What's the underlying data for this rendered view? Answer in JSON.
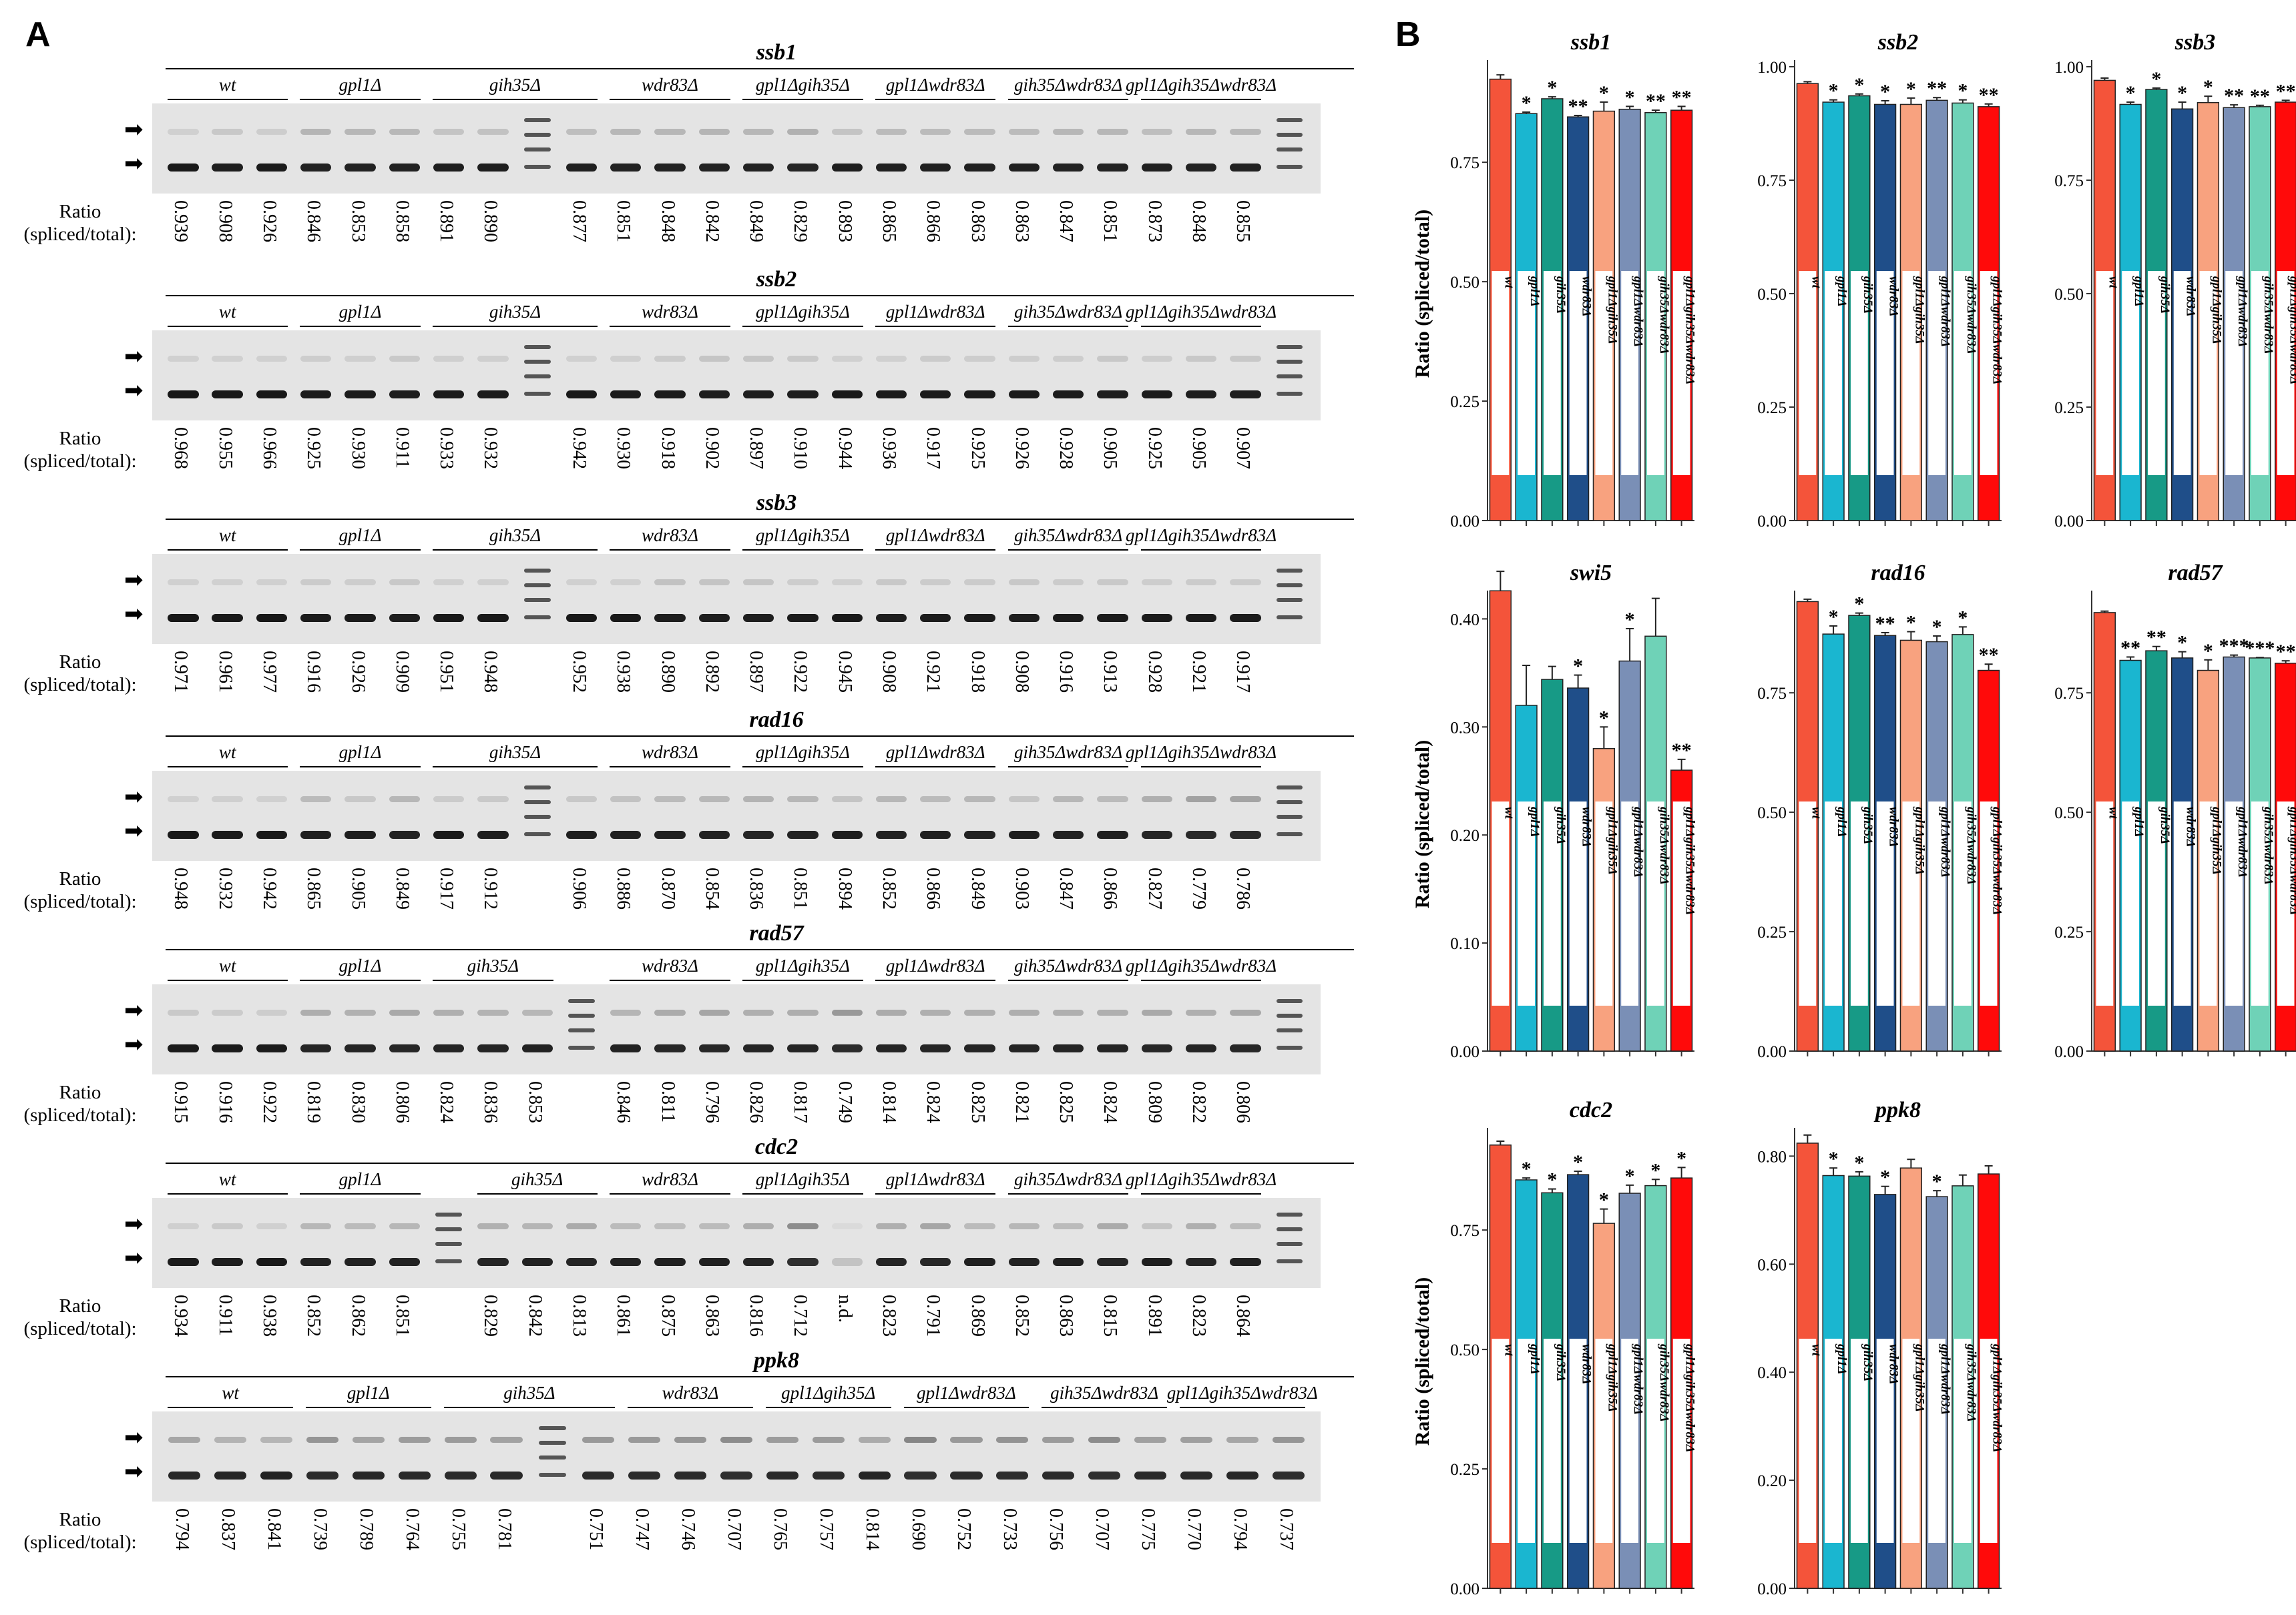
{
  "panels": {
    "a": "A",
    "b": "B"
  },
  "ratio_label_1": "Ratio",
  "ratio_label_2": "(spliced/total):",
  "strains": [
    "wt",
    "gpl1Δ",
    "gih35Δ",
    "wdr83Δ",
    "gpl1Δgih35Δ",
    "gpl1Δwdr83Δ",
    "gih35Δwdr83Δ",
    "gpl1Δgih35Δwdr83Δ"
  ],
  "gels": [
    {
      "gene": "ssb1",
      "ladder_after": 8,
      "ladder_end": true,
      "ratios": [
        "0.939",
        "0.908",
        "0.926",
        "0.846",
        "0.853",
        "0.858",
        "0.891",
        "0.890",
        "0.877",
        "0.851",
        "0.848",
        "0.842",
        "0.849",
        "0.829",
        "0.893",
        "0.865",
        "0.866",
        "0.863",
        "0.863",
        "0.847",
        "0.851",
        "0.873",
        "0.848",
        "0.855"
      ]
    },
    {
      "gene": "ssb2",
      "ladder_after": 8,
      "ladder_end": true,
      "ratios": [
        "0.968",
        "0.955",
        "0.966",
        "0.925",
        "0.930",
        "0.911",
        "0.933",
        "0.932",
        "0.942",
        "0.930",
        "0.918",
        "0.902",
        "0.897",
        "0.910",
        "0.944",
        "0.936",
        "0.917",
        "0.925",
        "0.926",
        "0.928",
        "0.905",
        "0.925",
        "0.905",
        "0.907"
      ]
    },
    {
      "gene": "ssb3",
      "ladder_after": 8,
      "ladder_end": true,
      "ratios": [
        "0.971",
        "0.961",
        "0.977",
        "0.916",
        "0.926",
        "0.909",
        "0.951",
        "0.948",
        "0.952",
        "0.938",
        "0.890",
        "0.892",
        "0.897",
        "0.922",
        "0.945",
        "0.908",
        "0.921",
        "0.918",
        "0.908",
        "0.916",
        "0.913",
        "0.928",
        "0.921",
        "0.917"
      ]
    },
    {
      "gene": "rad16",
      "ladder_after": 8,
      "ladder_end": true,
      "ratios": [
        "0.948",
        "0.932",
        "0.942",
        "0.865",
        "0.905",
        "0.849",
        "0.917",
        "0.912",
        "0.906",
        "0.886",
        "0.870",
        "0.854",
        "0.836",
        "0.851",
        "0.894",
        "0.852",
        "0.866",
        "0.849",
        "0.903",
        "0.847",
        "0.866",
        "0.827",
        "0.779",
        "0.786"
      ]
    },
    {
      "gene": "rad57",
      "ladder_after": 9,
      "ladder_end": true,
      "ratios": [
        "0.915",
        "0.916",
        "0.922",
        "0.819",
        "0.830",
        "0.806",
        "0.824",
        "0.836",
        "0.853",
        "0.846",
        "0.811",
        "0.796",
        "0.826",
        "0.817",
        "0.749",
        "0.814",
        "0.824",
        "0.825",
        "0.821",
        "0.825",
        "0.824",
        "0.809",
        "0.822",
        "0.806"
      ]
    },
    {
      "gene": "cdc2",
      "ladder_after": 6,
      "ladder_end": true,
      "ratios": [
        "0.934",
        "0.911",
        "0.938",
        "0.852",
        "0.862",
        "0.851",
        "0.829",
        "0.842",
        "0.813",
        "0.861",
        "0.875",
        "0.863",
        "0.816",
        "0.712",
        "n.d.",
        "0.823",
        "0.791",
        "0.869",
        "0.852",
        "0.863",
        "0.815",
        "0.891",
        "0.823",
        "0.864"
      ]
    },
    {
      "gene": "ppk8",
      "ladder_after": 8,
      "ladder_end": false,
      "ratios": [
        "0.794",
        "0.837",
        "0.841",
        "0.739",
        "0.789",
        "0.764",
        "0.755",
        "0.781",
        "0.751",
        "0.747",
        "0.746",
        "0.707",
        "0.765",
        "0.757",
        "0.814",
        "0.690",
        "0.752",
        "0.733",
        "0.756",
        "0.707",
        "0.775",
        "0.770",
        "0.794",
        "0.737"
      ]
    }
  ],
  "chart_data": [
    {
      "type": "bar",
      "title": "ssb1",
      "ylabel": "Ratio (spliced/total)",
      "ylim": [
        0,
        0.95
      ],
      "yticks": [
        "0.00",
        "0.25",
        "0.50",
        "0.75"
      ],
      "ytick_values": [
        0,
        0.25,
        0.5,
        0.75
      ],
      "categories": [
        "wt",
        "gpl1Δ",
        "gih35Δ",
        "wdr83Δ",
        "gpl1Δgih35Δ",
        "gpl1Δwdr83Δ",
        "gih35Δwdr83Δ",
        "gpl1Δgih35Δwdr83Δ"
      ],
      "values": [
        0.924,
        0.852,
        0.883,
        0.845,
        0.857,
        0.861,
        0.854,
        0.859
      ],
      "errors": [
        0.009,
        0.003,
        0.004,
        0.003,
        0.019,
        0.006,
        0.005,
        0.008
      ],
      "sig": [
        "",
        "*",
        "*",
        "**",
        "*",
        "*",
        "**",
        "**"
      ]
    },
    {
      "type": "bar",
      "title": "ssb2",
      "ylabel": "",
      "ylim": [
        0,
        1.0
      ],
      "yticks": [
        "0.00",
        "0.25",
        "0.50",
        "0.75",
        "1.00"
      ],
      "ytick_values": [
        0,
        0.25,
        0.5,
        0.75,
        1.0
      ],
      "categories": [
        "wt",
        "gpl1Δ",
        "gih35Δ",
        "wdr83Δ",
        "gpl1Δgih35Δ",
        "gpl1Δwdr83Δ",
        "gih35Δwdr83Δ",
        "gpl1Δgih35Δwdr83Δ"
      ],
      "values": [
        0.963,
        0.922,
        0.936,
        0.917,
        0.917,
        0.926,
        0.92,
        0.912
      ],
      "errors": [
        0.004,
        0.005,
        0.004,
        0.008,
        0.014,
        0.006,
        0.007,
        0.006
      ],
      "sig": [
        "",
        "*",
        "*",
        "*",
        "*",
        "**",
        "*",
        "**"
      ]
    },
    {
      "type": "bar",
      "title": "ssb3",
      "ylabel": "",
      "ylim": [
        0,
        1.0
      ],
      "yticks": [
        "0.00",
        "0.25",
        "0.50",
        "0.75",
        "1.00"
      ],
      "ytick_values": [
        0,
        0.25,
        0.5,
        0.75,
        1.0
      ],
      "categories": [
        "wt",
        "gpl1Δ",
        "gih35Δ",
        "wdr83Δ",
        "gpl1Δgih35Δ",
        "gpl1Δwdr83Δ",
        "gih35Δwdr83Δ",
        "gpl1Δgih35Δwdr83Δ"
      ],
      "values": [
        0.97,
        0.917,
        0.95,
        0.907,
        0.921,
        0.91,
        0.912,
        0.922
      ],
      "errors": [
        0.005,
        0.005,
        0.003,
        0.015,
        0.014,
        0.006,
        0.003,
        0.004
      ],
      "sig": [
        "",
        "*",
        "*",
        "*",
        "*",
        "**",
        "**",
        "**"
      ]
    },
    {
      "type": "bar",
      "title": "swi5",
      "ylabel": "Ratio (spliced/total)",
      "ylim": [
        0,
        0.42
      ],
      "yticks": [
        "0.00",
        "0.10",
        "0.20",
        "0.30",
        "0.40"
      ],
      "ytick_values": [
        0,
        0.1,
        0.2,
        0.3,
        0.4
      ],
      "categories": [
        "wt",
        "gpl1Δ",
        "gih35Δ",
        "wdr83Δ",
        "gpl1Δgih35Δ",
        "gpl1Δwdr83Δ",
        "gih35Δwdr83Δ",
        "gpl1Δgih35Δwdr83Δ"
      ],
      "values": [
        0.426,
        0.32,
        0.344,
        0.336,
        0.28,
        0.361,
        0.384,
        0.26
      ],
      "errors": [
        0.018,
        0.037,
        0.012,
        0.012,
        0.02,
        0.03,
        0.035,
        0.01
      ],
      "sig": [
        "",
        "",
        "",
        "*",
        "*",
        "*",
        "",
        "**"
      ]
    },
    {
      "type": "bar",
      "title": "rad16",
      "ylabel": "",
      "ylim": [
        0,
        0.95
      ],
      "yticks": [
        "0.00",
        "0.25",
        "0.50",
        "0.75"
      ],
      "ytick_values": [
        0,
        0.25,
        0.5,
        0.75
      ],
      "categories": [
        "wt",
        "gpl1Δ",
        "gih35Δ",
        "wdr83Δ",
        "gpl1Δgih35Δ",
        "gpl1Δwdr83Δ",
        "gih35Δwdr83Δ",
        "gpl1Δgih35Δwdr83Δ"
      ],
      "values": [
        0.941,
        0.873,
        0.912,
        0.87,
        0.86,
        0.857,
        0.872,
        0.797
      ],
      "errors": [
        0.005,
        0.017,
        0.005,
        0.006,
        0.018,
        0.012,
        0.016,
        0.013
      ],
      "sig": [
        "",
        "*",
        "*",
        "**",
        "*",
        "*",
        "*",
        "**"
      ]
    },
    {
      "type": "bar",
      "title": "rad57",
      "ylabel": "",
      "ylim": [
        0,
        0.95
      ],
      "yticks": [
        "0.00",
        "0.25",
        "0.50",
        "0.75"
      ],
      "ytick_values": [
        0,
        0.25,
        0.5,
        0.75
      ],
      "categories": [
        "wt",
        "gpl1Δ",
        "gih35Δ",
        "wdr83Δ",
        "gpl1Δgih35Δ",
        "gpl1Δwdr83Δ",
        "gih35Δwdr83Δ",
        "gpl1Δgih35Δwdr83Δ"
      ],
      "values": [
        0.918,
        0.818,
        0.838,
        0.823,
        0.797,
        0.825,
        0.823,
        0.812
      ],
      "errors": [
        0.003,
        0.007,
        0.009,
        0.013,
        0.022,
        0.004,
        0.001,
        0.005
      ],
      "sig": [
        "",
        "**",
        "**",
        "*",
        "*",
        "***",
        "***",
        "**"
      ]
    },
    {
      "type": "bar",
      "title": "cdc2",
      "ylabel": "Ratio (spliced/total)",
      "ylim": [
        0,
        0.95
      ],
      "yticks": [
        "0.00",
        "0.25",
        "0.50",
        "0.75"
      ],
      "ytick_values": [
        0,
        0.25,
        0.5,
        0.75
      ],
      "categories": [
        "wt",
        "gpl1Δ",
        "gih35Δ",
        "wdr83Δ",
        "gpl1Δgih35Δ",
        "gpl1Δwdr83Δ",
        "gih35Δwdr83Δ",
        "gpl1Δgih35Δwdr83Δ"
      ],
      "values": [
        0.928,
        0.855,
        0.828,
        0.866,
        0.764,
        0.827,
        0.843,
        0.859
      ],
      "errors": [
        0.008,
        0.004,
        0.008,
        0.007,
        0.03,
        0.017,
        0.013,
        0.022
      ],
      "sig": [
        "",
        "*",
        "*",
        "*",
        "*",
        "*",
        "*",
        "*"
      ]
    },
    {
      "type": "bar",
      "title": "ppk8",
      "ylabel": "",
      "ylim": [
        0,
        0.84
      ],
      "yticks": [
        "0.00",
        "0.20",
        "0.40",
        "0.60",
        "0.80"
      ],
      "ytick_values": [
        0,
        0.2,
        0.4,
        0.6,
        0.8
      ],
      "categories": [
        "wt",
        "gpl1Δ",
        "gih35Δ",
        "wdr83Δ",
        "gpl1Δgih35Δ",
        "gpl1Δwdr83Δ",
        "gih35Δwdr83Δ",
        "gpl1Δgih35Δwdr83Δ"
      ],
      "values": [
        0.824,
        0.764,
        0.763,
        0.729,
        0.778,
        0.725,
        0.745,
        0.767
      ],
      "errors": [
        0.015,
        0.014,
        0.008,
        0.015,
        0.016,
        0.011,
        0.02,
        0.015
      ],
      "sig": [
        "",
        "*",
        "*",
        "*",
        "",
        "*",
        "",
        ""
      ]
    }
  ],
  "colors": {
    "bars": [
      "#f4543a",
      "#1ab6d0",
      "#179a86",
      "#1f4e89",
      "#f8a27f",
      "#7a8fb6",
      "#6fd2b7",
      "#ff0a0a"
    ],
    "gel_bg": "#e4e4e4"
  }
}
